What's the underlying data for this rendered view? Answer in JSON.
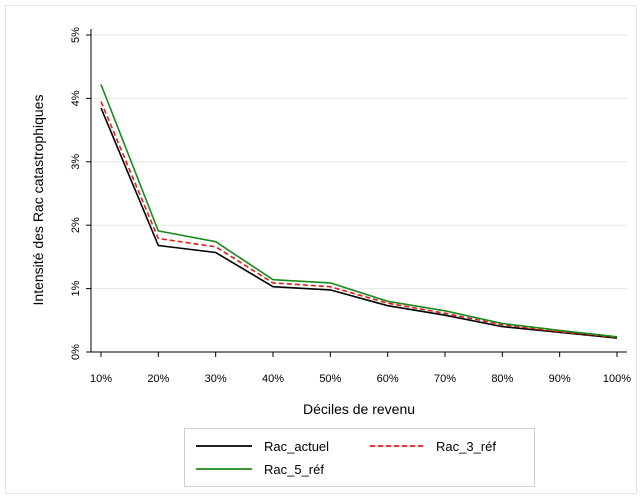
{
  "chart_data": {
    "type": "line",
    "title": "",
    "xlabel": "Déciles de revenu",
    "ylabel": "Intensité des Rac catastrophiques",
    "categories": [
      "10%",
      "20%",
      "30%",
      "40%",
      "50%",
      "60%",
      "70%",
      "80%",
      "90%",
      "100%"
    ],
    "yticks": [
      "0%",
      "1%",
      "2%",
      "3%",
      "4%",
      "5%"
    ],
    "ylim": [
      0,
      5
    ],
    "grid": true,
    "legend_position": "bottom",
    "series": [
      {
        "name": "Rac_actuel",
        "color": "#000000",
        "style": "solid",
        "values": [
          3.85,
          1.68,
          1.57,
          1.03,
          0.98,
          0.73,
          0.58,
          0.4,
          0.31,
          0.22
        ]
      },
      {
        "name": "Rac_3_réf",
        "color": "#e41a1c",
        "style": "dashed",
        "values": [
          3.95,
          1.79,
          1.66,
          1.09,
          1.03,
          0.77,
          0.61,
          0.43,
          0.32,
          0.23
        ]
      },
      {
        "name": "Rac_5_réf",
        "color": "#1a8a1a",
        "style": "solid",
        "values": [
          4.22,
          1.91,
          1.74,
          1.14,
          1.09,
          0.8,
          0.65,
          0.45,
          0.34,
          0.24
        ]
      }
    ]
  }
}
